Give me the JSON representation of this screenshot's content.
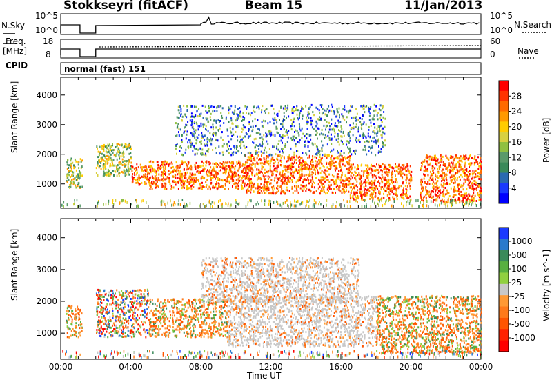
{
  "header": {
    "station": "Stokkseyri (fitACF)",
    "beam": "Beam 15",
    "date": "11/Jan/2013"
  },
  "noise_panel": {
    "left_label": "N.Sky",
    "right_label": "N.Search",
    "left_ticks": [
      "10^5",
      "10^0"
    ],
    "right_ticks": [
      "10^5",
      "10^0"
    ]
  },
  "freq_panel": {
    "left_label_line1": "Freq.",
    "left_label_line2": "[MHz]",
    "left_ticks": [
      "18",
      "8"
    ],
    "right_label": "Nave",
    "right_ticks": [
      "60",
      "0"
    ]
  },
  "cpid_panel": {
    "label": "CPID",
    "value": "normal (fast) 151"
  },
  "chart_data": [
    {
      "type": "heatmap",
      "title": "Power",
      "ylabel": "Slant Range [km]",
      "colorbar_label": "Power [dB]",
      "ylim": [
        180,
        4600
      ],
      "xlim": [
        "00:00",
        "24:00"
      ],
      "y_ticks": [
        "1000",
        "2000",
        "3000",
        "4000"
      ],
      "colorbar_ticks": [
        "28",
        "24",
        "20",
        "16",
        "12",
        "8",
        "4"
      ],
      "colors": [
        "#ff0000",
        "#ff3300",
        "#ff6a00",
        "#ff9900",
        "#ffcc00",
        "#d8d040",
        "#90c040",
        "#5a9a6a",
        "#3a8a5a",
        "#2a6ab0",
        "#1a3aff",
        "#0000ff"
      ],
      "echo_bands": [
        {
          "x": [
            0.3,
            1.2
          ],
          "y": [
            900,
            1900
          ],
          "level": "mid"
        },
        {
          "x": [
            2.0,
            4.0
          ],
          "y": [
            1300,
            2400
          ],
          "level": "mid"
        },
        {
          "x": [
            4.0,
            5.2
          ],
          "y": [
            1000,
            1700
          ],
          "level": "high"
        },
        {
          "x": [
            5.0,
            10.5
          ],
          "y": [
            850,
            1800
          ],
          "level": "high"
        },
        {
          "x": [
            10.5,
            16.5
          ],
          "y": [
            700,
            2000
          ],
          "level": "high"
        },
        {
          "x": [
            16.5,
            20.0
          ],
          "y": [
            500,
            1700
          ],
          "level": "high"
        },
        {
          "x": [
            20.5,
            24.0
          ],
          "y": [
            400,
            2000
          ],
          "level": "high"
        },
        {
          "x": [
            6.5,
            18.5
          ],
          "y": [
            2000,
            3700
          ],
          "level": "low"
        }
      ]
    },
    {
      "type": "heatmap",
      "title": "Velocity",
      "ylabel": "Slant Range [km]",
      "colorbar_label": "Velocity [m s^-1]",
      "xlabel": "Time UT",
      "ylim": [
        180,
        4600
      ],
      "xlim": [
        "00:00",
        "24:00"
      ],
      "y_ticks": [
        "1000",
        "2000",
        "3000",
        "4000"
      ],
      "x_ticks": [
        "00:00",
        "04:00",
        "08:00",
        "12:00",
        "16:00",
        "20:00",
        "00:00"
      ],
      "colorbar_ticks": [
        "1000",
        "500",
        "100",
        "25",
        "-25",
        "-100",
        "-500",
        "-1000"
      ],
      "colors": [
        "#1a3aff",
        "#2a7acc",
        "#3a8a5a",
        "#58b040",
        "#90d040",
        "#c8c8c8",
        "#ff9933",
        "#ff7a1a",
        "#ff5500",
        "#ff2200",
        "#ff0000"
      ],
      "echo_bands": [
        {
          "x": [
            0.3,
            1.2
          ],
          "y": [
            900,
            1900
          ],
          "level": "negative"
        },
        {
          "x": [
            2.0,
            5.0
          ],
          "y": [
            900,
            2400
          ],
          "level": "mixed"
        },
        {
          "x": [
            5.0,
            9.5
          ],
          "y": [
            900,
            2100
          ],
          "level": "negative"
        },
        {
          "x": [
            9.5,
            18.0
          ],
          "y": [
            600,
            2200
          ],
          "level": "ground"
        },
        {
          "x": [
            8.0,
            17.0
          ],
          "y": [
            2000,
            3400
          ],
          "level": "ground"
        },
        {
          "x": [
            18.0,
            24.0
          ],
          "y": [
            400,
            2200
          ],
          "level": "negative"
        }
      ]
    }
  ]
}
